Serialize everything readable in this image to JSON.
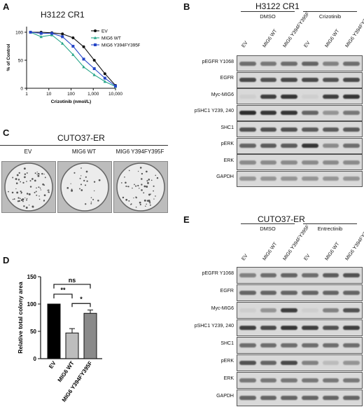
{
  "panels": {
    "A": {
      "letter": "A",
      "title": "H3122 CR1",
      "chart_data": {
        "type": "line",
        "title": "H3122 CR1",
        "xlabel": "Crizotinib (nmol/L)",
        "ylabel": "% of Control",
        "xscale": "log",
        "xlim": [
          1,
          10000
        ],
        "ylim": [
          0,
          110
        ],
        "xticks": [
          "1",
          "10",
          "100",
          "1,000",
          "10,000"
        ],
        "yticks": [
          "0",
          "50",
          "100"
        ],
        "legend_position": "top-right",
        "series": [
          {
            "name": "EV",
            "color": "#111111",
            "marker": "circle",
            "x": [
              1.5,
              4.5,
              13.7,
              41,
              123,
              370,
              1111,
              3333,
              10000
            ],
            "y": [
              100,
              100,
              99,
              97,
              90,
              74,
              50,
              26,
              5
            ]
          },
          {
            "name": "MIG6 WT",
            "color": "#27a58a",
            "marker": "triangle",
            "x": [
              1.5,
              4.5,
              13.7,
              41,
              123,
              370,
              1111,
              3333,
              10000
            ],
            "y": [
              100,
              92,
              95,
              80,
              60,
              38,
              24,
              12,
              3
            ]
          },
          {
            "name": "MIG6 Y394FY395F",
            "color": "#2646c8",
            "marker": "square",
            "x": [
              1.5,
              4.5,
              13.7,
              41,
              123,
              370,
              1111,
              3333,
              10000
            ],
            "y": [
              100,
              98,
              98,
              92,
              75,
              52,
              35,
              18,
              4
            ]
          }
        ]
      }
    },
    "B": {
      "letter": "B",
      "title": "H3122 CR1",
      "groups": [
        "DMSO",
        "Crizotinib"
      ],
      "lanes": [
        "EV",
        "MIG6 WT",
        "MIG6 Y394FY395F",
        "EV",
        "MIG6 WT",
        "MIG6 Y394FY395F"
      ],
      "rows": [
        "pEGFR Y1068",
        "EGFR",
        "Myc-MIG6",
        "pSHC1 Y239, 240",
        "SHC1",
        "pERK",
        "ERK",
        "GAPDH"
      ]
    },
    "C": {
      "letter": "C",
      "title": "CUTO37-ER",
      "conditions": [
        "EV",
        "MIG6 WT",
        "MIG6 Y394FY395F"
      ]
    },
    "D": {
      "letter": "D",
      "chart_data": {
        "type": "bar",
        "categories": [
          "EV",
          "MIG6 WT",
          "MIG6 Y394FY395F"
        ],
        "values": [
          100,
          47,
          83
        ],
        "errors": [
          0,
          8,
          6
        ],
        "colors": [
          "#000000",
          "#bdbdbd",
          "#8a8a8a"
        ],
        "ylabel": "Relative total colony area",
        "ylim": [
          0,
          150
        ],
        "yticks": [
          "0",
          "50",
          "100",
          "150"
        ],
        "significance": [
          {
            "pair": [
              "EV",
              "MIG6 WT"
            ],
            "label": "**"
          },
          {
            "pair": [
              "MIG6 WT",
              "MIG6 Y394FY395F"
            ],
            "label": "*"
          },
          {
            "pair": [
              "EV",
              "MIG6 Y394FY395F"
            ],
            "label": "ns"
          }
        ]
      }
    },
    "E": {
      "letter": "E",
      "title": "CUTO37-ER",
      "groups": [
        "DMSO",
        "Entrectinib"
      ],
      "lanes": [
        "EV",
        "MIG6 WT",
        "MIG6 Y394FY395F",
        "EV",
        "MIG6 WT",
        "MIG6 Y394FY395F"
      ],
      "rows": [
        "pEGFR Y1068",
        "EGFR",
        "Myc-MIG6",
        "pSHC1 Y239, 240",
        "SHC1",
        "pERK",
        "ERK",
        "GAPDH"
      ]
    }
  }
}
